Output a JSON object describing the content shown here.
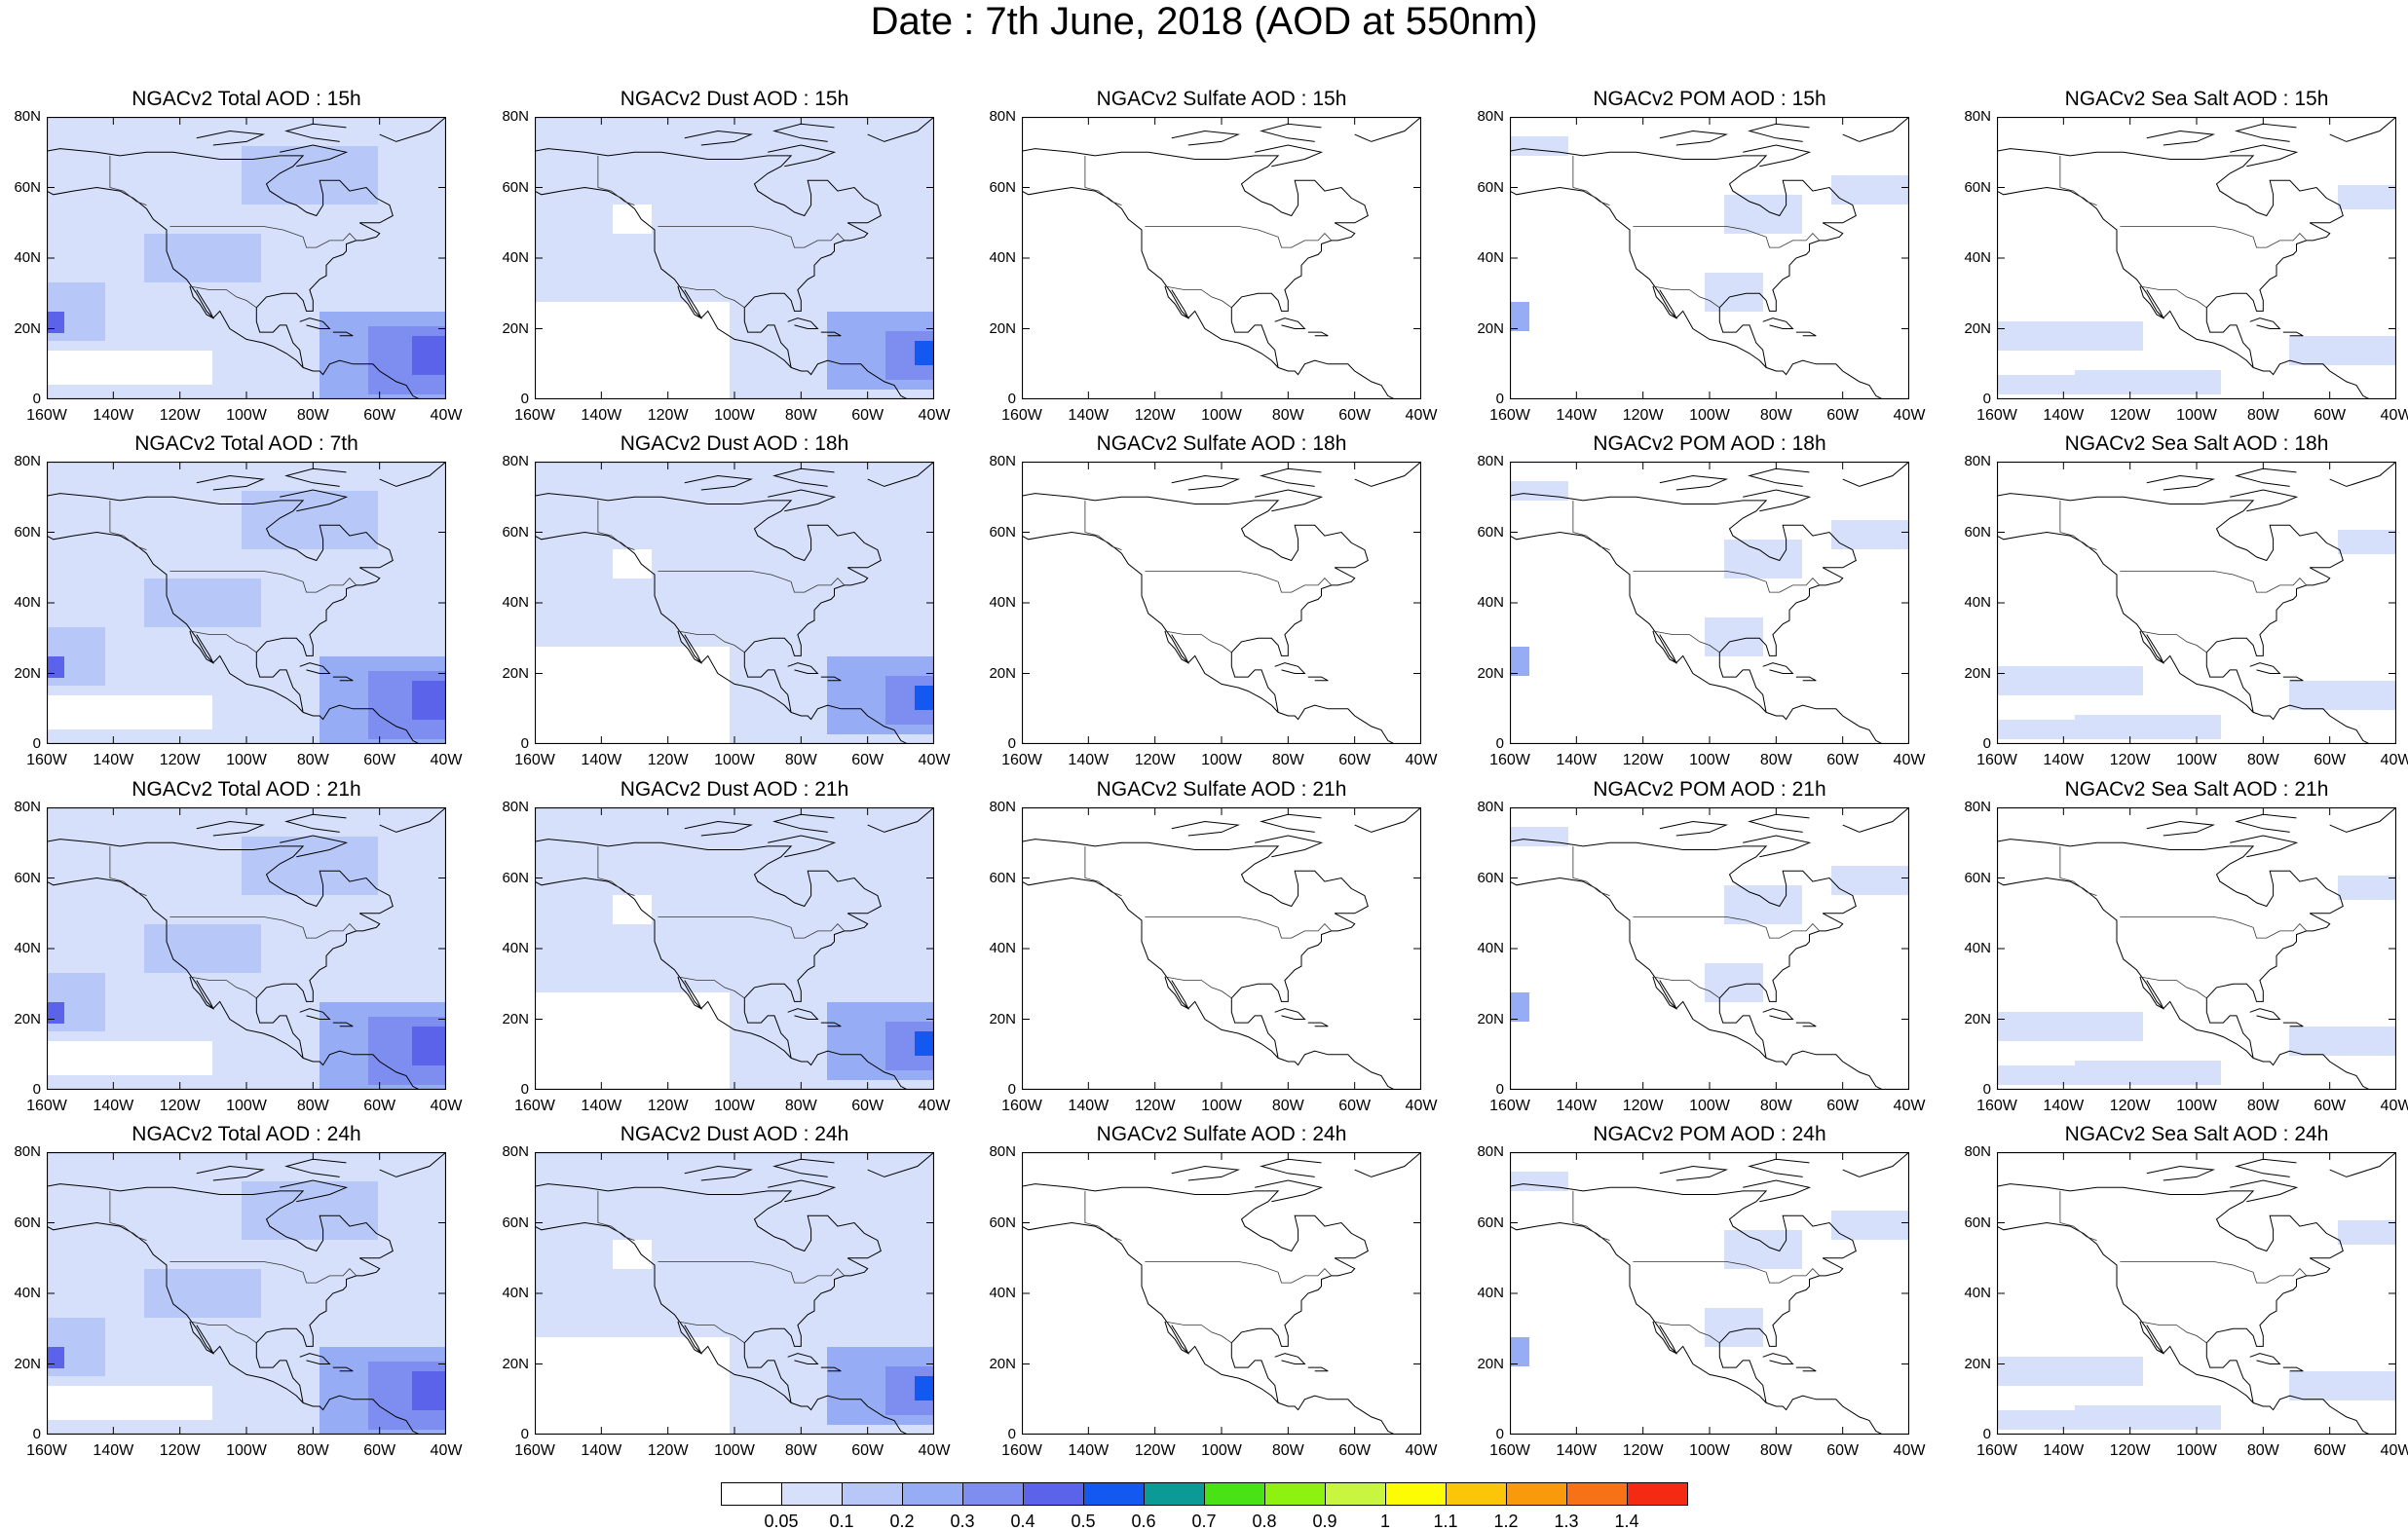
{
  "title": "Date : 7th June, 2018 (AOD at 550nm)",
  "panels": [
    {
      "title": "NGACv2 Total AOD : 15h",
      "type": "total"
    },
    {
      "title": "NGACv2 Dust AOD : 15h",
      "type": "dust"
    },
    {
      "title": "NGACv2 Sulfate AOD : 15h",
      "type": "sulfate"
    },
    {
      "title": "NGACv2 POM AOD : 15h",
      "type": "pom"
    },
    {
      "title": "NGACv2 Sea Salt AOD : 15h",
      "type": "seasalt"
    },
    {
      "title": "NGACv2 Total AOD : 7th",
      "type": "total"
    },
    {
      "title": "NGACv2 Dust AOD : 18h",
      "type": "dust"
    },
    {
      "title": "NGACv2 Sulfate AOD : 18h",
      "type": "sulfate"
    },
    {
      "title": "NGACv2 POM AOD : 18h",
      "type": "pom"
    },
    {
      "title": "NGACv2 Sea Salt AOD : 18h",
      "type": "seasalt"
    },
    {
      "title": "NGACv2 Total AOD : 21h",
      "type": "total"
    },
    {
      "title": "NGACv2 Dust AOD : 21h",
      "type": "dust"
    },
    {
      "title": "NGACv2 Sulfate AOD : 21h",
      "type": "sulfate"
    },
    {
      "title": "NGACv2 POM AOD : 21h",
      "type": "pom"
    },
    {
      "title": "NGACv2 Sea Salt AOD : 21h",
      "type": "seasalt"
    },
    {
      "title": "NGACv2 Total AOD : 24h",
      "type": "total"
    },
    {
      "title": "NGACv2 Dust AOD : 24h",
      "type": "dust"
    },
    {
      "title": "NGACv2 Sulfate AOD : 24h",
      "type": "sulfate"
    },
    {
      "title": "NGACv2 POM AOD : 24h",
      "type": "pom"
    },
    {
      "title": "NGACv2 Sea Salt  AOD : 24h",
      "type": "seasalt"
    }
  ],
  "lat_ticks": [
    "80N",
    "60N",
    "40N",
    "20N",
    "0"
  ],
  "lon_ticks": [
    "160W",
    "140W",
    "120W",
    "100W",
    "80W",
    "60W",
    "40W"
  ],
  "colorbar": {
    "levels": [
      "0.05",
      "0.1",
      "0.2",
      "0.3",
      "0.4",
      "0.5",
      "0.6",
      "0.7",
      "0.8",
      "0.9",
      "1",
      "1.1",
      "1.2",
      "1.3",
      "1.4"
    ],
    "colors": [
      "#ffffff",
      "#d6e0fb",
      "#b7c8f8",
      "#96adf5",
      "#7d8ef0",
      "#5b63ea",
      "#1358f0",
      "#0b9a96",
      "#49e315",
      "#8ef210",
      "#c8f540",
      "#fdfc05",
      "#fbc60a",
      "#f99a0d",
      "#f77216",
      "#f52a12"
    ]
  }
}
